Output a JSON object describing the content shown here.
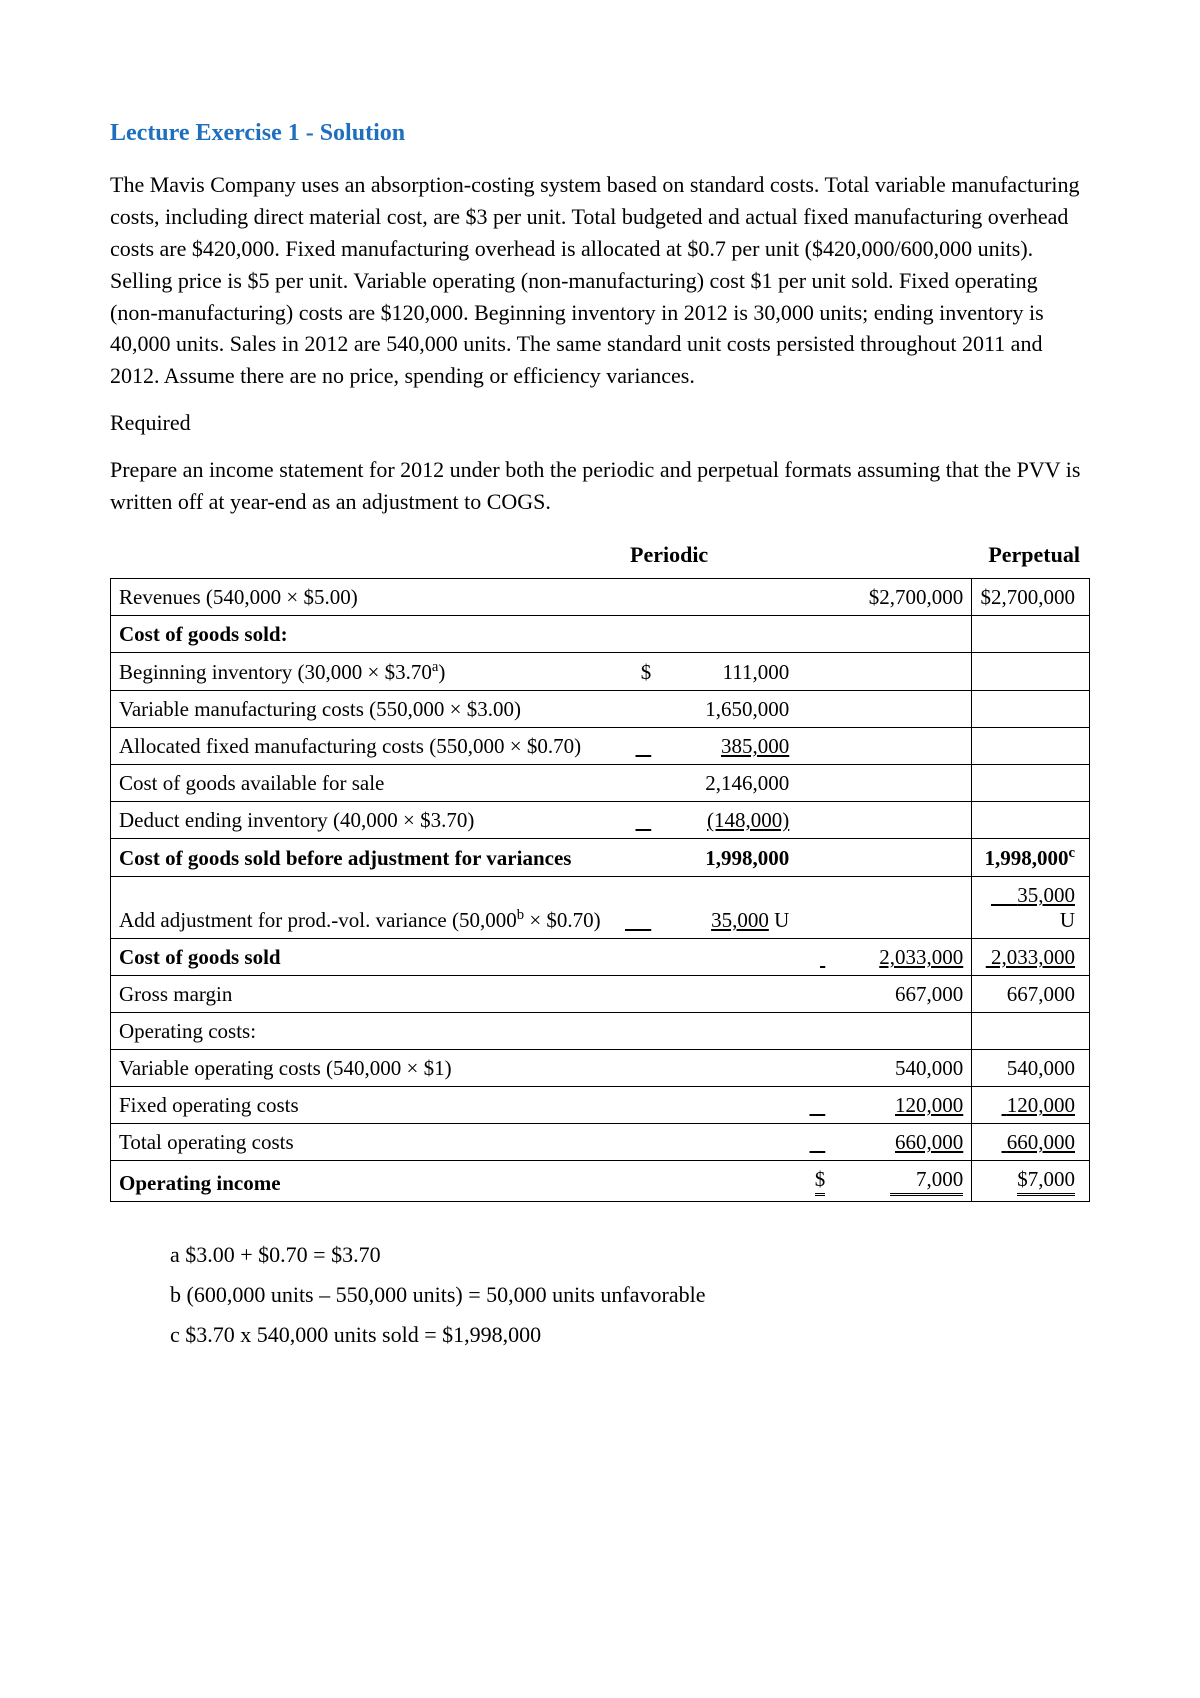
{
  "title": "Lecture Exercise 1 - Solution",
  "para1": "The Mavis Company uses an absorption-costing system based on standard costs. Total variable manufacturing costs, including direct material cost, are $3 per unit. Total budgeted and actual fixed manufacturing overhead costs are $420,000. Fixed manufacturing overhead is allocated at $0.7 per unit ($420,000/600,000 units). Selling price is $5 per unit. Variable operating (non-manufacturing) cost $1 per unit sold. Fixed operating (non-manufacturing) costs are $120,000. Beginning inventory in 2012 is 30,000 units; ending inventory is 40,000 units. Sales in 2012 are 540,000 units. The same standard unit costs persisted throughout 2011 and 2012. Assume there are no price, spending or efficiency variances.",
  "required_label": "Required",
  "para2": "Prepare an income statement for 2012 under both the periodic and perpetual formats assuming that the PVV is written off at year-end as an adjustment to COGS.",
  "headers": {
    "periodic": "Periodic",
    "perpetual": "Perpetual"
  },
  "rows": {
    "revenues": {
      "label": "Revenues (540,000 × $5.00)",
      "periodic_total": "$2,700,000",
      "perpetual": "$2,700,000"
    },
    "cogs_label": "Cost of goods sold:",
    "beg_inv": {
      "label": "Beginning inventory (30,000 × $3.70",
      "sup": "a",
      "label_end": ")",
      "sym": "$",
      "val": "111,000"
    },
    "var_mfg": {
      "label": "Variable manufacturing costs (550,000 × $3.00)",
      "val": "1,650,000"
    },
    "alloc_fixed": {
      "label": "Allocated fixed manufacturing costs (550,000 × $0.70)",
      "val": "385,000"
    },
    "cogas": {
      "label": "Cost of goods available for sale",
      "val": "2,146,000"
    },
    "ded_end": {
      "label": "Deduct ending inventory (40,000 × $3.70)",
      "val": "(148,000)"
    },
    "cogs_before": {
      "label": "Cost of goods sold before adjustment for variances",
      "val": "1,998,000",
      "perpetual": "1,998,000",
      "perpetual_sup": "c"
    },
    "add_adj": {
      "label": "Add adjustment for prod.-vol. variance (50,000",
      "sup": "b",
      "label_end": " × $0.70)",
      "val": "35,000",
      "tag": " U",
      "perpetual": "35,000",
      "perpetual_tag": " U"
    },
    "cogs": {
      "label": "Cost of goods sold",
      "periodic_total": "2,033,000",
      "perpetual": "2,033,000"
    },
    "gross": {
      "label": "Gross margin",
      "periodic_total": "667,000",
      "perpetual": "667,000"
    },
    "op_label": "Operating costs:",
    "var_op": {
      "label": "Variable operating costs (540,000 × $1)",
      "periodic_total": "540,000",
      "perpetual": "540,000"
    },
    "fixed_op": {
      "label": "Fixed operating costs",
      "periodic_total": "120,000",
      "perpetual": "120,000"
    },
    "total_op": {
      "label": "Total operating costs",
      "periodic_total": "660,000",
      "perpetual": "660,000"
    },
    "op_income": {
      "label": "Operating income",
      "sym": "$",
      "periodic_total": "7,000",
      "perpetual": "$7,000"
    }
  },
  "footnotes": {
    "a": {
      "letter": "a",
      "text": " $3.00 + $0.70 = $3.70"
    },
    "b": {
      "letter": "b",
      "text": " (600,000 units – 550,000 units) = 50,000 units unfavorable"
    },
    "c": {
      "letter": "c",
      "text": " $3.70 x 540,000 units sold = $1,998,000"
    }
  }
}
